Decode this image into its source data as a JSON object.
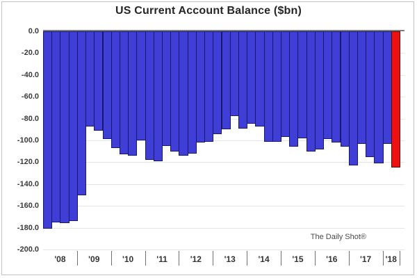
{
  "title": "US Current Account Balance ($bn)",
  "watermark": "The Daily Shot®",
  "colors": {
    "bar_fill": "#3f3fd8",
    "bar_border": "#17176b",
    "highlight_fill": "#ee1111",
    "highlight_border": "#5a0404",
    "zero_line": "#7d7d7d",
    "grid_line": "#e4e4e4"
  },
  "chart_data": {
    "type": "bar",
    "title": "US Current Account Balance ($bn)",
    "ylabel": "",
    "xlabel": "",
    "ylim": [
      -200,
      0
    ],
    "grid": true,
    "frequency": "quarterly",
    "y_tick_labels": [
      "0.0",
      "-20.0",
      "-40.0",
      "-60.0",
      "-80.0",
      "-100.0",
      "-120.0",
      "-140.0",
      "-160.0",
      "-180.0",
      "-200.0"
    ],
    "x_tick_labels": [
      "'08",
      "'09",
      "'10",
      "'11",
      "'12",
      "'13",
      "'14",
      "'15",
      "'16",
      "'17",
      "'18"
    ],
    "bars_per_year": [
      4,
      4,
      4,
      4,
      4,
      4,
      4,
      4,
      4,
      4,
      2
    ],
    "values": [
      -181,
      -175,
      -176,
      -174,
      -150,
      -87,
      -91,
      -99,
      -107,
      -113,
      -114,
      -100,
      -118,
      -119,
      -105,
      -110,
      -114,
      -112,
      -102,
      -101,
      -94,
      -90,
      -78,
      -89,
      -85,
      -87,
      -101,
      -101,
      -97,
      -106,
      -98,
      -110,
      -108,
      -99,
      -102,
      -106,
      -123,
      -103,
      -115,
      -121,
      -103,
      -125
    ],
    "highlight_index": 41,
    "highlight_meaning": "latest bar shown in red",
    "annotations": [
      "The Daily Shot®"
    ]
  }
}
